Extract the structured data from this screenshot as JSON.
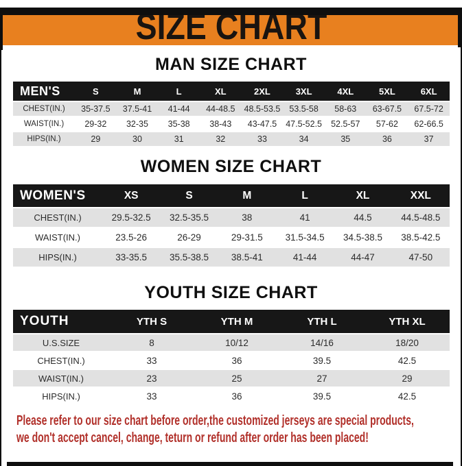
{
  "banner": {
    "title": "SIZE CHART"
  },
  "colors": {
    "banner_bg": "#E8801F",
    "frame_black": "#0E0E0E",
    "table_header_bg": "#171717",
    "shaded_row_bg": "#E1E1E1",
    "note_red": "#B1302A"
  },
  "sections": [
    {
      "id": "men",
      "heading": "MAN SIZE CHART",
      "group_label": "MEN'S",
      "columns": [
        "S",
        "M",
        "L",
        "XL",
        "2XL",
        "3XL",
        "4XL",
        "5XL",
        "6XL"
      ],
      "rows": [
        {
          "label": "CHEST(IN.)",
          "shaded": true,
          "values": [
            "35-37.5",
            "37.5-41",
            "41-44",
            "44-48.5",
            "48.5-53.5",
            "53.5-58",
            "58-63",
            "63-67.5",
            "67.5-72"
          ]
        },
        {
          "label": "WAIST(IN.)",
          "shaded": false,
          "values": [
            "29-32",
            "32-35",
            "35-38",
            "38-43",
            "43-47.5",
            "47.5-52.5",
            "52.5-57",
            "57-62",
            "62-66.5"
          ]
        },
        {
          "label": "HIPS(IN.)",
          "shaded": true,
          "values": [
            "29",
            "30",
            "31",
            "32",
            "33",
            "34",
            "35",
            "36",
            "37"
          ]
        }
      ]
    },
    {
      "id": "women",
      "heading": "WOMEN SIZE CHART",
      "group_label": "WOMEN'S",
      "columns": [
        "XS",
        "S",
        "M",
        "L",
        "XL",
        "XXL"
      ],
      "rows": [
        {
          "label": "CHEST(IN.)",
          "shaded": true,
          "values": [
            "29.5-32.5",
            "32.5-35.5",
            "38",
            "41",
            "44.5",
            "44.5-48.5"
          ]
        },
        {
          "label": "WAIST(IN.)",
          "shaded": false,
          "values": [
            "23.5-26",
            "26-29",
            "29-31.5",
            "31.5-34.5",
            "34.5-38.5",
            "38.5-42.5"
          ]
        },
        {
          "label": "HIPS(IN.)",
          "shaded": true,
          "values": [
            "33-35.5",
            "35.5-38.5",
            "38.5-41",
            "41-44",
            "44-47",
            "47-50"
          ]
        }
      ]
    },
    {
      "id": "youth",
      "heading": "YOUTH SIZE CHART",
      "group_label": "YOUTH",
      "columns": [
        "YTH S",
        "YTH M",
        "YTH L",
        "YTH XL"
      ],
      "rows": [
        {
          "label": "U.S.SIZE",
          "shaded": true,
          "values": [
            "8",
            "10/12",
            "14/16",
            "18/20"
          ]
        },
        {
          "label": "CHEST(IN.)",
          "shaded": false,
          "values": [
            "33",
            "36",
            "39.5",
            "42.5"
          ]
        },
        {
          "label": "WAIST(IN.)",
          "shaded": true,
          "values": [
            "23",
            "25",
            "27",
            "29"
          ]
        },
        {
          "label": "HIPS(IN.)",
          "shaded": false,
          "values": [
            "33",
            "36",
            "39.5",
            "42.5"
          ]
        }
      ]
    }
  ],
  "footer": {
    "lines": [
      "Please refer to our size chart before order,the customized jerseys are special products,",
      "we don't accept cancel, change, teturn or refund after order has been placed!"
    ]
  }
}
